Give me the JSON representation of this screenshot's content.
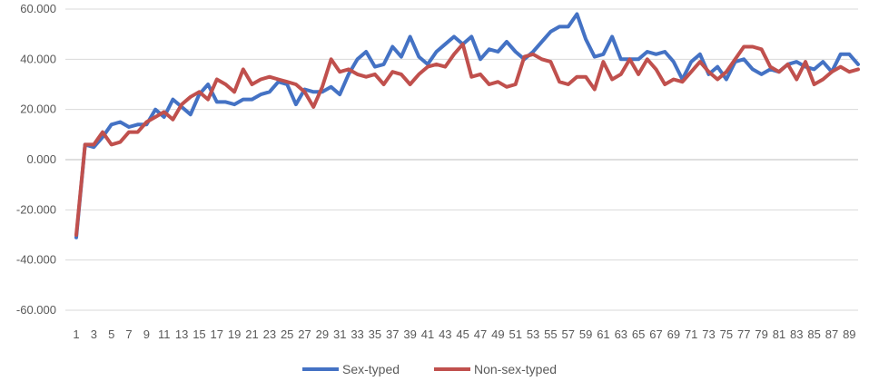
{
  "chart_data": {
    "type": "line",
    "title": "",
    "xlabel": "",
    "ylabel": "",
    "ylim": [
      -60,
      60
    ],
    "yticks": [
      -60,
      -40,
      -20,
      0,
      20,
      40,
      60
    ],
    "ytick_labels": [
      "-60.000",
      "-40.000",
      "-20.000",
      "0.000",
      "20.000",
      "40.000",
      "60.000"
    ],
    "x": [
      1,
      2,
      3,
      4,
      5,
      6,
      7,
      8,
      9,
      10,
      11,
      12,
      13,
      14,
      15,
      16,
      17,
      18,
      19,
      20,
      21,
      22,
      23,
      24,
      25,
      26,
      27,
      28,
      29,
      30,
      31,
      32,
      33,
      34,
      35,
      36,
      37,
      38,
      39,
      40,
      41,
      42,
      43,
      44,
      45,
      46,
      47,
      48,
      49,
      50,
      51,
      52,
      53,
      54,
      55,
      56,
      57,
      58,
      59,
      60,
      61,
      62,
      63,
      64,
      65,
      66,
      67,
      68,
      69,
      70,
      71,
      72,
      73,
      74,
      75,
      76,
      77,
      78,
      79,
      80,
      81,
      82,
      83,
      84,
      85,
      86,
      87,
      88,
      89,
      90
    ],
    "x_tick_labels": [
      "1",
      "3",
      "5",
      "7",
      "9",
      "11",
      "13",
      "15",
      "17",
      "19",
      "21",
      "23",
      "25",
      "27",
      "29",
      "31",
      "33",
      "35",
      "37",
      "39",
      "41",
      "43",
      "45",
      "47",
      "49",
      "51",
      "53",
      "55",
      "57",
      "59",
      "61",
      "63",
      "65",
      "67",
      "69",
      "71",
      "73",
      "75",
      "77",
      "79",
      "81",
      "83",
      "85",
      "87",
      "89"
    ],
    "grid": "horizontal",
    "legend": "bottom",
    "series": [
      {
        "name": "Sex-typed",
        "color": "#4472C4",
        "values": [
          -31,
          6,
          5,
          9,
          14,
          15,
          13,
          14,
          14,
          20,
          17,
          24,
          21,
          18,
          26,
          30,
          23,
          23,
          22,
          24,
          24,
          26,
          27,
          31,
          30,
          22,
          28,
          27,
          27,
          29,
          26,
          34,
          40,
          43,
          37,
          38,
          45,
          41,
          49,
          41,
          38,
          43,
          46,
          49,
          46,
          49,
          40,
          44,
          43,
          47,
          43,
          40,
          43,
          47,
          51,
          53,
          53,
          58,
          48,
          41,
          42,
          49,
          40,
          40,
          40,
          43,
          42,
          43,
          39,
          32,
          39,
          42,
          34,
          37,
          32,
          39,
          40,
          36,
          34,
          36,
          35,
          38,
          39,
          37,
          36,
          39,
          35,
          42,
          42,
          38
        ]
      },
      {
        "name": "Non-sex-typed",
        "color": "#C0504D",
        "values": [
          -30,
          6,
          6,
          11,
          6,
          7,
          11,
          11,
          15,
          17,
          19,
          16,
          22,
          25,
          27,
          24,
          32,
          30,
          27,
          36,
          30,
          32,
          33,
          32,
          31,
          30,
          27,
          21,
          29,
          40,
          35,
          36,
          34,
          33,
          34,
          30,
          35,
          34,
          30,
          34,
          37,
          38,
          37,
          42,
          46,
          33,
          34,
          30,
          31,
          29,
          30,
          41,
          42,
          40,
          39,
          31,
          30,
          33,
          33,
          28,
          39,
          32,
          34,
          40,
          34,
          40,
          36,
          30,
          32,
          31,
          35,
          39,
          35,
          32,
          35,
          40,
          45,
          45,
          44,
          37,
          35,
          38,
          32,
          39,
          30,
          32,
          35,
          37,
          35,
          36
        ]
      }
    ]
  }
}
